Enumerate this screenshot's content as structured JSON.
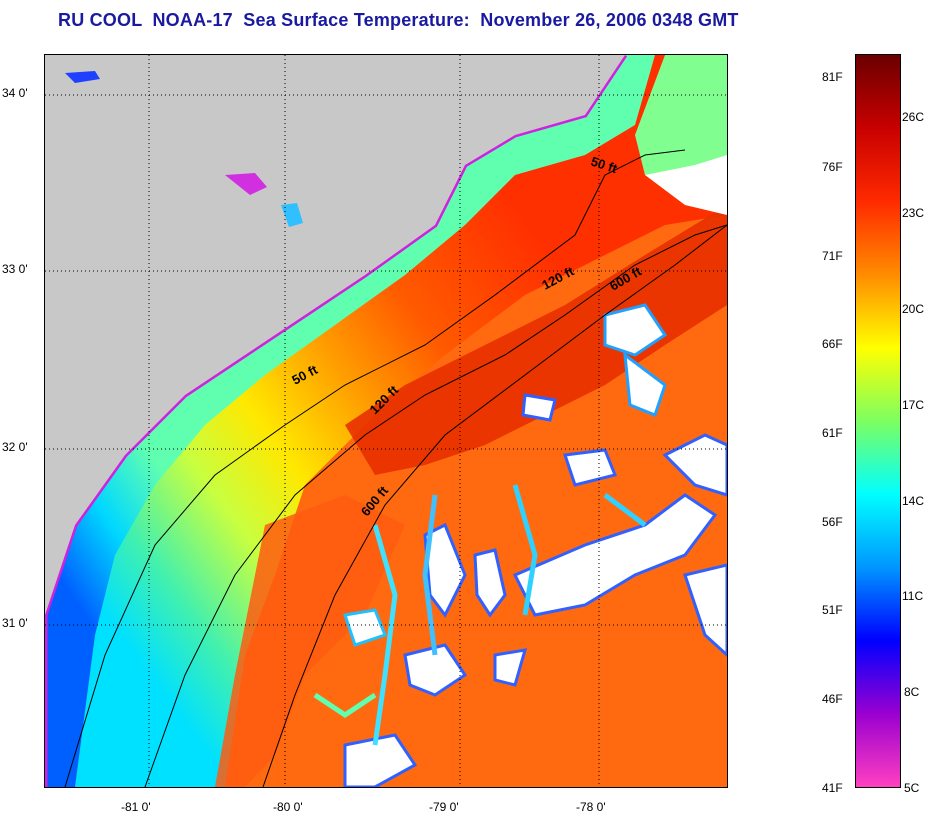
{
  "title": "RU COOL  NOAA-17  Sea Surface Temperature:  November 26, 2006 0348 GMT",
  "map": {
    "longitude_labels": [
      "-81 0'",
      "-80 0'",
      "-79 0'",
      "-78 0'"
    ],
    "latitude_labels": [
      "34 0'",
      "33 0'",
      "32 0'",
      "31 0'"
    ],
    "contour_labels": [
      "50 ft",
      "120 ft",
      "600 ft",
      "50 ft",
      "120 ft",
      "600 ft"
    ],
    "colors": {
      "land": "#c8c8c8",
      "cloud": "#ffffff"
    }
  },
  "colorbar": {
    "fahrenheit_labels": [
      "81F",
      "76F",
      "71F",
      "66F",
      "61F",
      "56F",
      "51F",
      "46F",
      "41F"
    ],
    "celsius_labels": [
      "26C",
      "23C",
      "20C",
      "17C",
      "14C",
      "11C",
      "8C",
      "5C"
    ],
    "colors": [
      "#6b0000",
      "#c80000",
      "#ff2a00",
      "#ff8c00",
      "#ffff00",
      "#7dff60",
      "#00ffff",
      "#0096ff",
      "#0000ff",
      "#9a00d0",
      "#ff40c0"
    ]
  }
}
